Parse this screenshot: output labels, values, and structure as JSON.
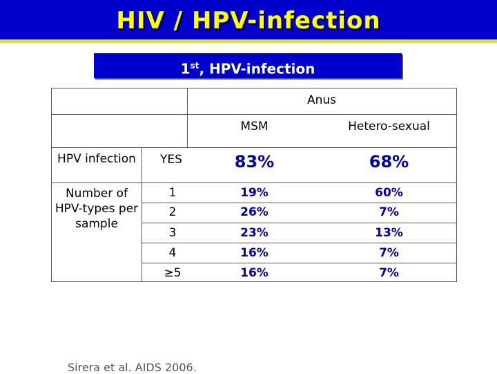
{
  "title": "HIV / HPV-infection",
  "subtitle": {
    "ordinal": "1",
    "sup": "st",
    "rest": ", HPV-infection"
  },
  "table": {
    "group_header": "Anus",
    "col_headers": [
      "MSM",
      "Hetero-sexual"
    ],
    "row_label_infection": "HPV infection",
    "yes_label": "YES",
    "yes_values": [
      "83%",
      "68%"
    ],
    "row_label_types": "Number of HPV-types per sample",
    "rows": [
      {
        "n": "1",
        "msm": "19%",
        "het": "60%"
      },
      {
        "n": "2",
        "msm": "26%",
        "het": "7%"
      },
      {
        "n": "3",
        "msm": "23%",
        "het": "13%"
      },
      {
        "n": "4",
        "msm": "16%",
        "het": "7%"
      },
      {
        "n": "≥5",
        "msm": "16%",
        "het": "7%"
      }
    ]
  },
  "citation": "Sirera et al. AIDS 2006."
}
